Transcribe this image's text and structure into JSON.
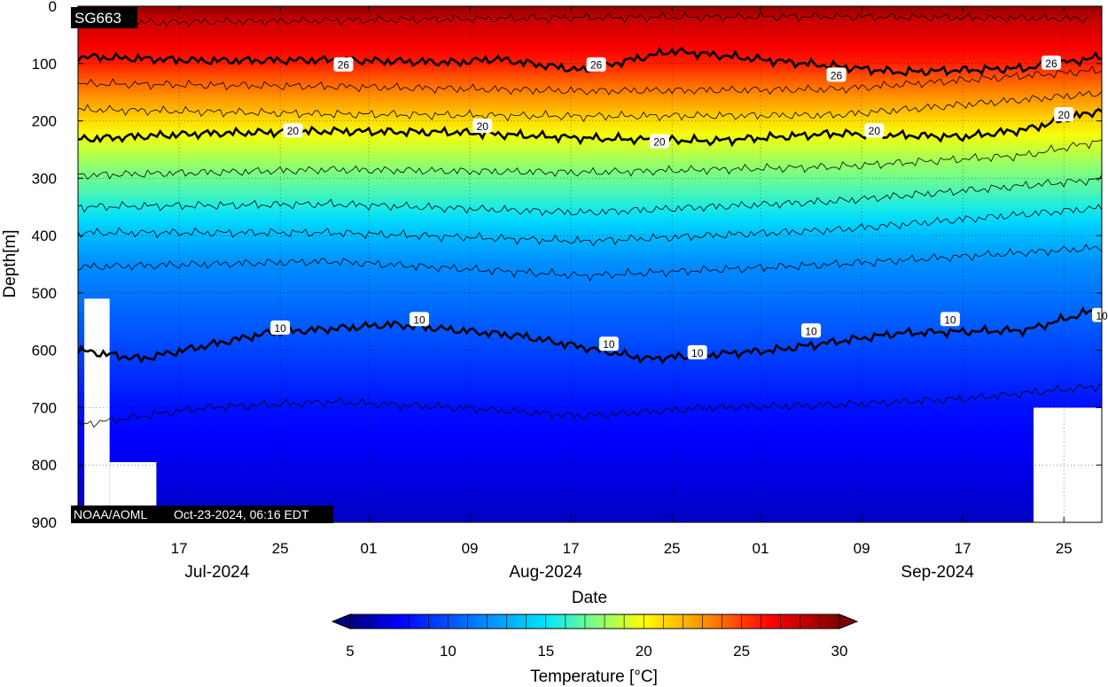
{
  "chart_data": {
    "type": "heatmap",
    "platform_label": "SG663",
    "credit": "NOAA/AOML",
    "timestamp": "Oct-23-2024, 06:16 EDT",
    "xlabel": "Date",
    "ylabel": "Depth[m]",
    "yreversed": true,
    "ylim": [
      0,
      900
    ],
    "y_ticks": [
      0,
      100,
      200,
      300,
      400,
      500,
      600,
      700,
      800,
      900
    ],
    "x_range_days": [
      "2024-07-09",
      "2024-09-28"
    ],
    "x_ticks": [
      {
        "date": "2024-07-17",
        "label": "17"
      },
      {
        "date": "2024-07-25",
        "label": "25"
      },
      {
        "date": "2024-08-01",
        "label": "01"
      },
      {
        "date": "2024-08-09",
        "label": "09"
      },
      {
        "date": "2024-08-17",
        "label": "17"
      },
      {
        "date": "2024-08-25",
        "label": "25"
      },
      {
        "date": "2024-09-01",
        "label": "01"
      },
      {
        "date": "2024-09-09",
        "label": "09"
      },
      {
        "date": "2024-09-17",
        "label": "17"
      },
      {
        "date": "2024-09-25",
        "label": "25"
      }
    ],
    "month_labels": [
      {
        "date": "2024-07-20",
        "label": "Jul-2024"
      },
      {
        "date": "2024-08-15",
        "label": "Aug-2024"
      },
      {
        "date": "2024-09-15",
        "label": "Sep-2024"
      }
    ],
    "grid": true,
    "colorbar": {
      "title": "Temperature [°C]",
      "min": 5,
      "max": 30,
      "ticks": [
        5,
        10,
        15,
        20,
        25,
        30
      ],
      "extend": "both",
      "stops": [
        {
          "value": 5,
          "color": "#00007f"
        },
        {
          "value": 7.5,
          "color": "#0000ff"
        },
        {
          "value": 11.5,
          "color": "#007fff"
        },
        {
          "value": 15,
          "color": "#00e5ff"
        },
        {
          "value": 17.5,
          "color": "#7fff7f"
        },
        {
          "value": 20,
          "color": "#ffff00"
        },
        {
          "value": 23.5,
          "color": "#ff8000"
        },
        {
          "value": 26.5,
          "color": "#ff0000"
        },
        {
          "value": 30,
          "color": "#7f0000"
        }
      ]
    },
    "contours": [
      {
        "value": 28,
        "label": "",
        "bold": false,
        "depths": [
          [
            0,
            30
          ],
          [
            20,
            25
          ],
          [
            40,
            20
          ],
          [
            60,
            18
          ],
          [
            80,
            22
          ]
        ]
      },
      {
        "value": 26,
        "label": "26",
        "bold": true,
        "depths": [
          [
            0,
            88
          ],
          [
            10,
            95
          ],
          [
            20,
            94
          ],
          [
            30,
            98
          ],
          [
            33,
            92
          ],
          [
            40,
            112
          ],
          [
            47,
            78
          ],
          [
            55,
            95
          ],
          [
            65,
            115
          ],
          [
            75,
            108
          ],
          [
            80,
            92
          ],
          [
            82,
            82
          ]
        ]
      },
      {
        "value": 24,
        "label": "",
        "bold": false,
        "depths": [
          [
            0,
            135
          ],
          [
            20,
            140
          ],
          [
            40,
            148
          ],
          [
            60,
            145
          ],
          [
            82,
            110
          ]
        ]
      },
      {
        "value": 22,
        "label": "",
        "bold": false,
        "depths": [
          [
            0,
            180
          ],
          [
            20,
            188
          ],
          [
            40,
            192
          ],
          [
            60,
            190
          ],
          [
            82,
            150
          ]
        ]
      },
      {
        "value": 20,
        "label": "20",
        "bold": true,
        "depths": [
          [
            0,
            232
          ],
          [
            10,
            222
          ],
          [
            20,
            218
          ],
          [
            30,
            220
          ],
          [
            40,
            230
          ],
          [
            50,
            235
          ],
          [
            60,
            222
          ],
          [
            70,
            228
          ],
          [
            75,
            215
          ],
          [
            82,
            175
          ]
        ]
      },
      {
        "value": 18,
        "label": "",
        "bold": false,
        "depths": [
          [
            0,
            295
          ],
          [
            20,
            285
          ],
          [
            40,
            290
          ],
          [
            60,
            280
          ],
          [
            75,
            260
          ],
          [
            82,
            230
          ]
        ]
      },
      {
        "value": 16,
        "label": "",
        "bold": false,
        "depths": [
          [
            0,
            350
          ],
          [
            20,
            345
          ],
          [
            40,
            360
          ],
          [
            60,
            340
          ],
          [
            82,
            300
          ]
        ]
      },
      {
        "value": 14,
        "label": "",
        "bold": false,
        "depths": [
          [
            0,
            395
          ],
          [
            20,
            395
          ],
          [
            40,
            410
          ],
          [
            60,
            390
          ],
          [
            82,
            350
          ]
        ]
      },
      {
        "value": 12,
        "label": "",
        "bold": false,
        "depths": [
          [
            0,
            455
          ],
          [
            20,
            445
          ],
          [
            40,
            470
          ],
          [
            60,
            450
          ],
          [
            82,
            420
          ]
        ]
      },
      {
        "value": 10,
        "label": "10",
        "bold": true,
        "depths": [
          [
            0,
            600
          ],
          [
            5,
            615
          ],
          [
            15,
            570
          ],
          [
            25,
            555
          ],
          [
            35,
            575
          ],
          [
            45,
            615
          ],
          [
            55,
            600
          ],
          [
            65,
            570
          ],
          [
            75,
            565
          ],
          [
            82,
            520
          ]
        ]
      },
      {
        "value": 8,
        "label": "",
        "bold": false,
        "depths": [
          [
            0,
            730
          ],
          [
            10,
            700
          ],
          [
            20,
            690
          ],
          [
            30,
            700
          ],
          [
            40,
            715
          ],
          [
            50,
            700
          ],
          [
            60,
            695
          ],
          [
            70,
            685
          ],
          [
            82,
            660
          ]
        ]
      }
    ],
    "contour_labels": [
      {
        "text": "26",
        "day": 21,
        "depth": 103
      },
      {
        "text": "26",
        "day": 41,
        "depth": 103
      },
      {
        "text": "26",
        "day": 60,
        "depth": 121
      },
      {
        "text": "26",
        "day": 77,
        "depth": 100
      },
      {
        "text": "20",
        "day": 17,
        "depth": 218
      },
      {
        "text": "20",
        "day": 32,
        "depth": 210
      },
      {
        "text": "20",
        "day": 46,
        "depth": 237
      },
      {
        "text": "20",
        "day": 63,
        "depth": 218
      },
      {
        "text": "20",
        "day": 78,
        "depth": 190
      },
      {
        "text": "10",
        "day": 16,
        "depth": 562
      },
      {
        "text": "10",
        "day": 27,
        "depth": 547
      },
      {
        "text": "10",
        "day": 42,
        "depth": 590
      },
      {
        "text": "10",
        "day": 49,
        "depth": 605
      },
      {
        "text": "10",
        "day": 58,
        "depth": 567
      },
      {
        "text": "10",
        "day": 69,
        "depth": 547
      },
      {
        "text": "10",
        "day": 81,
        "depth": 540
      }
    ],
    "no_data_regions": [
      {
        "day_start": 0.5,
        "day_end": 2.5,
        "depth_start": 510,
        "depth_end": 900
      },
      {
        "day_start": 2.5,
        "day_end": 6.2,
        "depth_start": 795,
        "depth_end": 900
      },
      {
        "day_start": 75.6,
        "day_end": 82,
        "depth_start": 700,
        "depth_end": 900
      }
    ]
  }
}
